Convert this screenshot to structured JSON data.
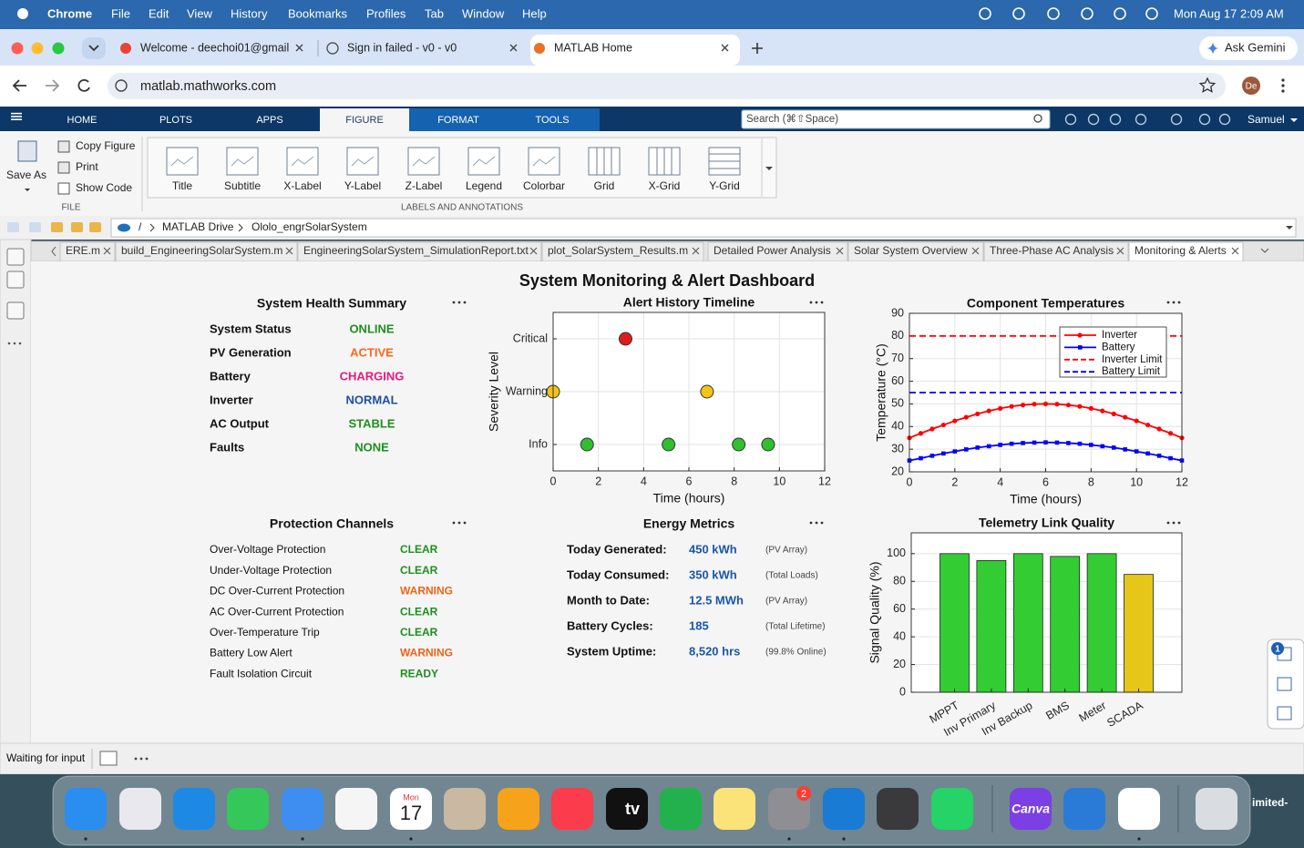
{
  "menubar": {
    "app": "Chrome",
    "items": [
      "File",
      "Edit",
      "View",
      "History",
      "Bookmarks",
      "Profiles",
      "Tab",
      "Window",
      "Help"
    ],
    "clock": "Mon Aug 17  2:09 AM"
  },
  "browser": {
    "tabs": [
      "Welcome - deechoi01@gmail",
      "Sign in failed - v0 - v0",
      "MATLAB Home"
    ],
    "active_tab": "MATLAB Home",
    "gemini": "Ask Gemini",
    "url": "matlab.mathworks.com",
    "avatar": "De"
  },
  "matlab": {
    "tabs": [
      "HOME",
      "PLOTS",
      "APPS",
      "FIGURE",
      "FORMAT",
      "TOOLS"
    ],
    "active_tab": "FIGURE",
    "search": "Search (⌘⇧Space)",
    "user": "Samuel",
    "file_section": {
      "save_as": "Save As",
      "items": [
        "Copy Figure",
        "Print",
        "Show Code"
      ],
      "label": "FILE"
    },
    "annotations": {
      "buttons": [
        "Title",
        "Subtitle",
        "X-Label",
        "Y-Label",
        "Z-Label",
        "Legend",
        "Colorbar",
        "Grid",
        "X-Grid",
        "Y-Grid"
      ],
      "label": "LABELS AND ANNOTATIONS"
    },
    "path": [
      "/",
      "MATLAB Drive",
      "Ololo_engrSolarSystem"
    ],
    "editor_tabs": [
      "ERE.m",
      "build_EngineeringSolarSystem.m",
      "EngineeringSolarSystem_SimulationReport.txt",
      "plot_SolarSystem_Results.m",
      "Detailed Power Analysis",
      "Solar System Overview",
      "Three-Phase AC Analysis",
      "Monitoring & Alerts"
    ],
    "active_editor_tab": "Monitoring & Alerts",
    "status": "Waiting for input",
    "side_badge": "1"
  },
  "figure": {
    "title": "System Monitoring & Alert Dashboard",
    "health": {
      "title": "System Health Summary",
      "rows": [
        {
          "label": "System Status",
          "status": "ONLINE",
          "color": "#1f8f1f"
        },
        {
          "label": "PV Generation",
          "status": "ACTIVE",
          "color": "#ff6619"
        },
        {
          "label": "Battery",
          "status": "CHARGING",
          "color": "#e6197f"
        },
        {
          "label": "Inverter",
          "status": "NORMAL",
          "color": "#1f4fa0"
        },
        {
          "label": "AC Output",
          "status": "STABLE",
          "color": "#1f8f1f"
        },
        {
          "label": "Faults",
          "status": "NONE",
          "color": "#1f8f1f"
        }
      ]
    },
    "protection": {
      "title": "Protection Channels",
      "rows": [
        {
          "label": "Over-Voltage Protection",
          "status": "CLEAR",
          "color": "#1f8f1f"
        },
        {
          "label": "Under-Voltage Protection",
          "status": "CLEAR",
          "color": "#1f8f1f"
        },
        {
          "label": "DC Over-Current Protection",
          "status": "WARNING",
          "color": "#e8661a"
        },
        {
          "label": "AC Over-Current Protection",
          "status": "CLEAR",
          "color": "#1f8f1f"
        },
        {
          "label": "Over-Temperature Trip",
          "status": "CLEAR",
          "color": "#1f8f1f"
        },
        {
          "label": "Battery Low Alert",
          "status": "WARNING",
          "color": "#e8661a"
        },
        {
          "label": "Fault Isolation Circuit",
          "status": "READY",
          "color": "#1f8f1f"
        }
      ]
    },
    "energy": {
      "title": "Energy Metrics",
      "rows": [
        {
          "label": "Today Generated:",
          "value": "450 kWh",
          "note": "(PV Array)"
        },
        {
          "label": "Today Consumed:",
          "value": "350 kWh",
          "note": "(Total Loads)"
        },
        {
          "label": "Month to Date:",
          "value": "12.5 MWh",
          "note": "(PV Array)"
        },
        {
          "label": "Battery Cycles:",
          "value": "185",
          "note": "(Total Lifetime)"
        },
        {
          "label": "System Uptime:",
          "value": "8,520 hrs",
          "note": "(99.8% Online)"
        }
      ]
    }
  },
  "chart_data": [
    {
      "type": "scatter",
      "title": "Alert History Timeline",
      "xlabel": "Time (hours)",
      "ylabel": "Severity Level",
      "xlim": [
        0,
        12
      ],
      "xticks": [
        0,
        2,
        4,
        6,
        8,
        10,
        12
      ],
      "ylim": [
        0.5,
        3.5
      ],
      "yticks": [
        {
          "value": 1,
          "label": "Info"
        },
        {
          "value": 2,
          "label": "Warning"
        },
        {
          "value": 3,
          "label": "Critical"
        }
      ],
      "grid": true,
      "series": [
        {
          "color": "#e01b1b",
          "x": [
            3.2
          ],
          "values": [
            3
          ]
        },
        {
          "color": "#f2c318",
          "x": [
            0,
            6.8
          ],
          "values": [
            2,
            2
          ]
        },
        {
          "color": "#2fbf2f",
          "x": [
            1.5,
            5.1,
            8.2,
            9.5
          ],
          "values": [
            1,
            1,
            1,
            1
          ]
        }
      ]
    },
    {
      "type": "line",
      "title": "Component Temperatures",
      "xlabel": "Time (hours)",
      "ylabel": "Temperature (°C)",
      "xlim": [
        0,
        12
      ],
      "xticks": [
        0,
        2,
        4,
        6,
        8,
        10,
        12
      ],
      "ylim": [
        20,
        90
      ],
      "yticks": [
        20,
        30,
        40,
        50,
        60,
        70,
        80,
        90
      ],
      "grid": true,
      "legend": "northeast",
      "series": [
        {
          "name": "Inverter",
          "color": "#ff0000",
          "linestyle": "-",
          "marker": "o",
          "x": [
            0,
            0.5,
            1,
            1.5,
            2,
            2.5,
            3,
            3.5,
            4,
            4.5,
            5,
            5.5,
            6,
            6.5,
            7,
            7.5,
            8,
            8.5,
            9,
            9.5,
            10,
            10.5,
            11,
            11.5,
            12
          ],
          "values": [
            35,
            37.0,
            38.9,
            40.7,
            42.5,
            44.1,
            45.6,
            46.9,
            48.0,
            48.9,
            49.5,
            49.9,
            50,
            49.9,
            49.5,
            48.9,
            48.0,
            46.9,
            45.6,
            44.1,
            42.5,
            40.7,
            38.9,
            37.0,
            35
          ]
        },
        {
          "name": "Battery",
          "color": "#0000ff",
          "linestyle": "-",
          "marker": "s",
          "x": [
            0,
            0.5,
            1,
            1.5,
            2,
            2.5,
            3,
            3.5,
            4,
            4.5,
            5,
            5.5,
            6,
            6.5,
            7,
            7.5,
            8,
            8.5,
            9,
            9.5,
            10,
            10.5,
            11,
            11.5,
            12
          ],
          "values": [
            25,
            26.0,
            27.1,
            28.1,
            29,
            29.9,
            30.7,
            31.3,
            31.9,
            32.4,
            32.7,
            32.9,
            33,
            32.9,
            32.7,
            32.4,
            31.9,
            31.3,
            30.7,
            29.9,
            29,
            28.1,
            27.1,
            26.0,
            25
          ]
        },
        {
          "name": "Inverter Limit",
          "color": "#ff0000",
          "linestyle": "--",
          "marker": null,
          "x": [
            0,
            12
          ],
          "values": [
            80,
            80
          ]
        },
        {
          "name": "Battery Limit",
          "color": "#0000ff",
          "linestyle": "--",
          "marker": null,
          "x": [
            0,
            12
          ],
          "values": [
            55,
            55
          ]
        }
      ]
    },
    {
      "type": "bar",
      "title": "Telemetry Link Quality",
      "ylabel": "Signal Quality (%)",
      "categories": [
        "MPPT",
        "Inv Primary",
        "Inv Backup",
        "BMS",
        "Meter",
        "SCADA"
      ],
      "values": [
        100,
        95,
        100,
        98,
        100,
        85
      ],
      "colors": [
        "#33cc33",
        "#33cc33",
        "#33cc33",
        "#33cc33",
        "#33cc33",
        "#e6c619"
      ],
      "ylim": [
        0,
        115
      ],
      "yticks": [
        0,
        20,
        40,
        60,
        80,
        100
      ],
      "grid": true
    }
  ],
  "dock": {
    "calendar_day": "Mon",
    "calendar_date": "17",
    "settings_badge": "2",
    "tv": "tv",
    "canva": "Canva",
    "edge_label": "imited-"
  }
}
